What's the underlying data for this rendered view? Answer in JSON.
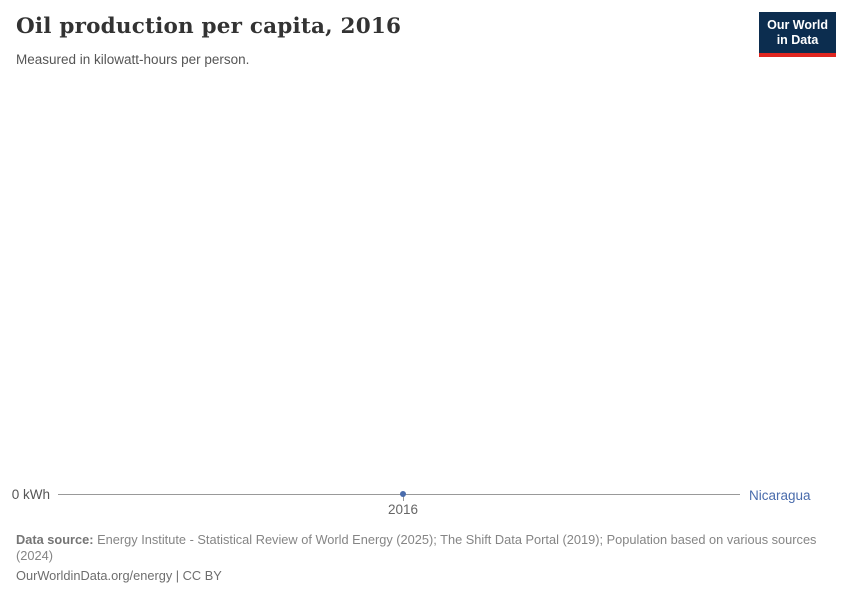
{
  "header": {
    "title": "Oil production per capita, 2016",
    "subtitle": "Measured in kilowatt-hours per person.",
    "logo": {
      "line1": "Our World",
      "line2": "in Data"
    }
  },
  "chart": {
    "y_axis_label": "0 kWh",
    "x_tick_label": "2016",
    "entity_label": "Nicaragua"
  },
  "chart_data": {
    "type": "line",
    "title": "Oil production per capita, 2016",
    "subtitle": "Measured in kilowatt-hours per person.",
    "unit": "kilowatt-hours per person",
    "x": [
      2016
    ],
    "series": [
      {
        "name": "Nicaragua",
        "values": [
          0
        ]
      }
    ],
    "xlabel": "",
    "ylabel": "",
    "xticks": [
      "2016"
    ],
    "yticks": [
      {
        "value": 0,
        "label": "0 kWh"
      }
    ],
    "ylim": [
      0,
      0
    ],
    "grid": false,
    "legend_position": "end-of-line-label"
  },
  "footer": {
    "datasource_label": "Data source:",
    "datasource_text": "Energy Institute - Statistical Review of World Energy (2025); The Shift Data Portal (2019); Population based on various sources (2024)",
    "link_text": "OurWorldinData.org/energy | CC BY"
  },
  "colors": {
    "series_blue": "#4a6cac",
    "axis_line_gray": "#999999",
    "logo_background": "#0c2d4f",
    "logo_red": "#e02620",
    "title_color": "#333333",
    "footer_gray": "#858585"
  }
}
